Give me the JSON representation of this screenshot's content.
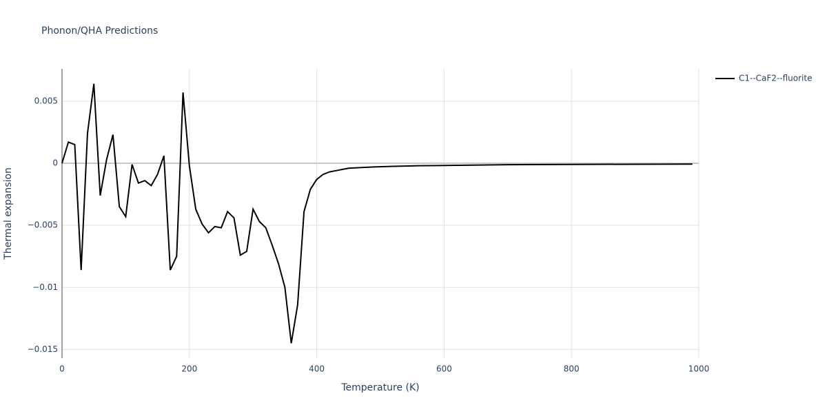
{
  "chart_data": {
    "type": "line",
    "title": "Phonon/QHA Predictions",
    "x_label": "Temperature (K)",
    "y_label": "Thermal expansion",
    "x": [
      0,
      10,
      20,
      30,
      40,
      50,
      60,
      70,
      80,
      90,
      100,
      110,
      120,
      130,
      140,
      150,
      160,
      170,
      180,
      190,
      200,
      210,
      220,
      230,
      240,
      250,
      260,
      270,
      280,
      290,
      300,
      310,
      320,
      330,
      340,
      350,
      360,
      370,
      380,
      390,
      400,
      410,
      420,
      430,
      440,
      450,
      470,
      490,
      520,
      560,
      600,
      700,
      800,
      900,
      990
    ],
    "series": [
      {
        "name": "C1--CaF2--fluorite",
        "color": "#000000",
        "values": [
          0,
          0.0017,
          0.0015,
          -0.0086,
          0.0024,
          0.0064,
          -0.0026,
          0.0003,
          0.0023,
          -0.0035,
          -0.0043,
          -0.0001,
          -0.0016,
          -0.0014,
          -0.0018,
          -0.0009,
          0.0006,
          -0.0086,
          -0.0075,
          0.0057,
          -0.0002,
          -0.0037,
          -0.0049,
          -0.0056,
          -0.0051,
          -0.0052,
          -0.0039,
          -0.0044,
          -0.0074,
          -0.0071,
          -0.0037,
          -0.0047,
          -0.0052,
          -0.0066,
          -0.0081,
          -0.01,
          -0.0145,
          -0.0114,
          -0.0039,
          -0.0021,
          -0.0013,
          -0.0009,
          -0.0007,
          -0.0006,
          -0.0005,
          -0.0004,
          -0.00035,
          -0.0003,
          -0.00025,
          -0.0002,
          -0.00018,
          -0.00012,
          -0.0001,
          -8e-05,
          -7e-05
        ]
      }
    ],
    "xlim": [
      0,
      1000
    ],
    "xticks": [
      0,
      200,
      400,
      600,
      800,
      1000
    ],
    "ylim": [
      -0.0157,
      0.0076
    ],
    "yticks": [
      {
        "value": -0.015,
        "label": "−0.015"
      },
      {
        "value": -0.01,
        "label": "−0.01"
      },
      {
        "value": -0.005,
        "label": "−0.005"
      },
      0,
      0.005
    ],
    "grid": true,
    "legend": "right"
  }
}
